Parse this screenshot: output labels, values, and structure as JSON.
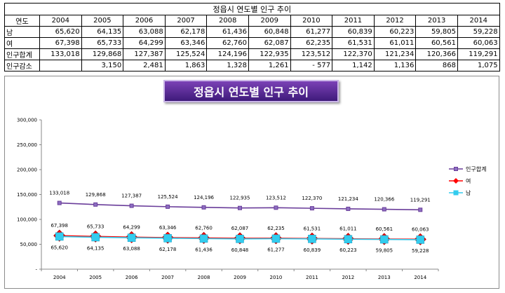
{
  "table": {
    "title": "정읍시 연도별 인구 추이",
    "header_label": "연도",
    "years": [
      "2004",
      "2005",
      "2006",
      "2007",
      "2008",
      "2009",
      "2010",
      "2011",
      "2012",
      "2013",
      "2014"
    ],
    "rows": [
      {
        "label": "남",
        "values": [
          "65,620",
          "64,135",
          "63,088",
          "62,178",
          "61,436",
          "60,848",
          "61,277",
          "60,839",
          "60,223",
          "59,805",
          "59,228"
        ]
      },
      {
        "label": "여",
        "values": [
          "67,398",
          "65,733",
          "64,299",
          "63,346",
          "62,760",
          "62,087",
          "62,235",
          "61,531",
          "61,011",
          "60,561",
          "60,063"
        ]
      },
      {
        "label": "인구합계",
        "values": [
          "133,018",
          "129,868",
          "127,387",
          "125,524",
          "124,196",
          "122,935",
          "123,512",
          "122,370",
          "121,234",
          "120,366",
          "119,291"
        ]
      },
      {
        "label": "인구감소",
        "values": [
          "",
          "3,150",
          "2,481",
          "1,863",
          "1,328",
          "1,261",
          "-   577",
          "1,142",
          "1,136",
          "868",
          "1,075"
        ]
      }
    ]
  },
  "chart_data": {
    "type": "line",
    "title": "정읍시 연도별 인구 추이",
    "categories": [
      "2004",
      "2005",
      "2006",
      "2007",
      "2008",
      "2009",
      "2010",
      "2011",
      "2012",
      "2013",
      "2014"
    ],
    "series": [
      {
        "name": "인구합계",
        "color": "#6a3d9a",
        "marker": "small-square",
        "values": [
          133018,
          129868,
          127387,
          125524,
          124196,
          122935,
          123512,
          122370,
          121234,
          120366,
          119291
        ],
        "labels": [
          "133,018",
          "129,868",
          "127,387",
          "125,524",
          "124,196",
          "122,935",
          "123,512",
          "122,370",
          "121,234",
          "120,366",
          "119,291"
        ]
      },
      {
        "name": "여",
        "color": "#ff0000",
        "marker": "diamond",
        "values": [
          67398,
          65733,
          64299,
          63346,
          62760,
          62087,
          62235,
          61531,
          61011,
          60561,
          60063
        ],
        "labels": [
          "67,398",
          "65,733",
          "64,299",
          "63,346",
          "62,760",
          "62,087",
          "62,235",
          "61,531",
          "61,011",
          "60,561",
          "60,063"
        ]
      },
      {
        "name": "남",
        "color": "#33ccee",
        "marker": "square",
        "values": [
          65620,
          64135,
          63088,
          62178,
          61436,
          60848,
          61277,
          60839,
          60223,
          59805,
          59228
        ],
        "labels": [
          "65,620",
          "64,135",
          "63,088",
          "62,178",
          "61,436",
          "60,848",
          "61,277",
          "60,839",
          "60,223",
          "59,805",
          "59,228"
        ]
      }
    ],
    "y_ticks": [
      0,
      50000,
      100000,
      150000,
      200000,
      250000,
      300000
    ],
    "y_tick_labels": [
      "-",
      "50,000",
      "100,000",
      "150,000",
      "200,000",
      "250,000",
      "300,000"
    ],
    "ylim": [
      0,
      300000
    ],
    "grid": false,
    "legend_position": "right"
  }
}
